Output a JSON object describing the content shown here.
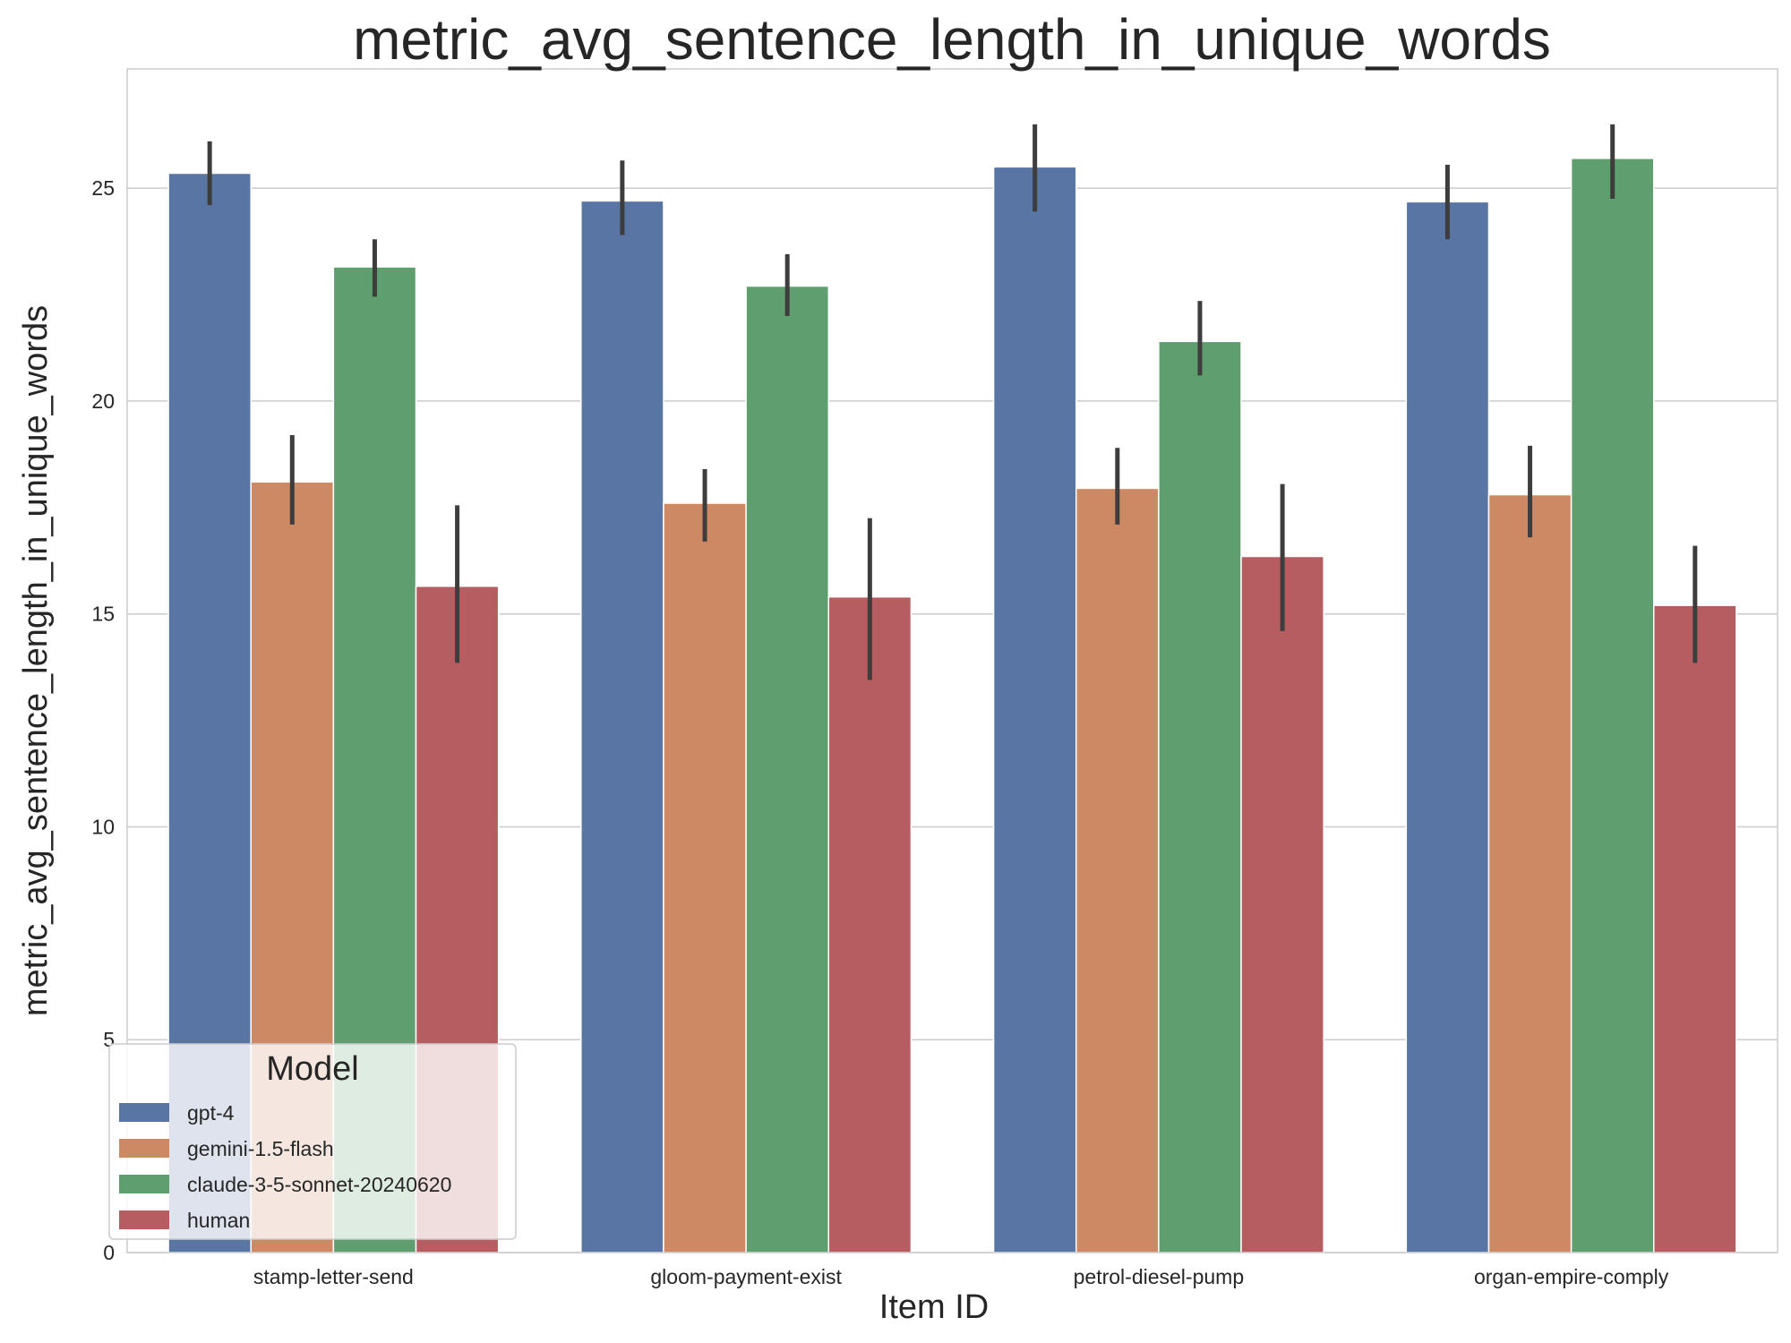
{
  "chart_data": {
    "type": "bar",
    "title": "metric_avg_sentence_length_in_unique_words",
    "xlabel": "Item ID",
    "ylabel": "metric_avg_sentence_length_in_unique_words",
    "categories": [
      "stamp-letter-send",
      "gloom-payment-exist",
      "petrol-diesel-pump",
      "organ-empire-comply"
    ],
    "ylim": [
      0,
      27.8
    ],
    "yticks": [
      0,
      5,
      10,
      15,
      20,
      25
    ],
    "grid": true,
    "legend": {
      "title": "Model",
      "position": "lower-left"
    },
    "series": [
      {
        "name": "gpt-4",
        "color": "#5975a4",
        "values": [
          25.35,
          24.7,
          25.5,
          24.68
        ],
        "error_low": [
          24.6,
          23.9,
          24.45,
          23.8
        ],
        "error_high": [
          26.1,
          25.65,
          26.5,
          25.55
        ]
      },
      {
        "name": "gemini-1.5-flash",
        "color": "#cc8963",
        "values": [
          18.1,
          17.6,
          17.95,
          17.8
        ],
        "error_low": [
          17.1,
          16.7,
          17.1,
          16.8
        ],
        "error_high": [
          19.2,
          18.4,
          18.9,
          18.95
        ]
      },
      {
        "name": "claude-3-5-sonnet-20240620",
        "color": "#5f9e6e",
        "values": [
          23.15,
          22.7,
          21.4,
          25.7
        ],
        "error_low": [
          22.45,
          22.0,
          20.6,
          24.75
        ],
        "error_high": [
          23.8,
          23.45,
          22.35,
          26.5
        ]
      },
      {
        "name": "human",
        "color": "#b55d60",
        "values": [
          15.65,
          15.4,
          16.35,
          15.2
        ],
        "error_low": [
          13.85,
          13.45,
          14.6,
          13.85
        ],
        "error_high": [
          17.55,
          17.25,
          18.05,
          16.6
        ]
      }
    ]
  }
}
